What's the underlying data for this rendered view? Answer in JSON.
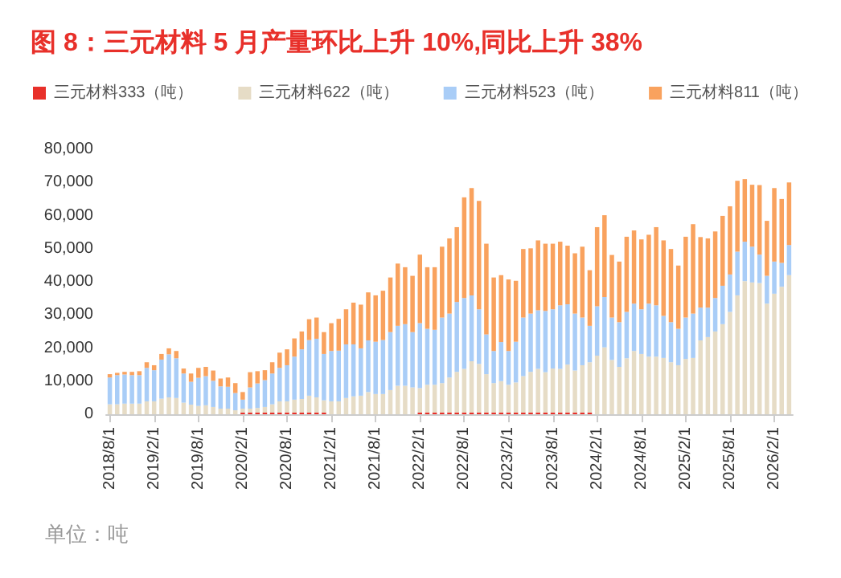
{
  "chart_data": {
    "type": "bar",
    "stacked": true,
    "title": "图 8：三元材料 5 月产量环比上升 10%,同比上升 38%",
    "annotations": [
      "单位：吨"
    ],
    "legend": "top",
    "categories": [
      "2018/8/1",
      null,
      null,
      null,
      null,
      null,
      "2019/2/1",
      null,
      null,
      null,
      null,
      null,
      "2019/8/1",
      null,
      null,
      null,
      null,
      null,
      "2020/2/1",
      null,
      null,
      null,
      null,
      null,
      "2020/8/1",
      null,
      null,
      null,
      null,
      null,
      "2021/2/1",
      null,
      null,
      null,
      null,
      null,
      "2021/8/1",
      null,
      null,
      null,
      null,
      null,
      "2022/2/1",
      null,
      null,
      null,
      null,
      null,
      "2022/8/1",
      null,
      null,
      null,
      null,
      null,
      "2023/2/1",
      null,
      null,
      null,
      null,
      null,
      "2023/8/1",
      null,
      null,
      null,
      null,
      null,
      "2024/2/1",
      null,
      null,
      null,
      null,
      null,
      "2024/8/1",
      null,
      null,
      null,
      null,
      null,
      "2025/2/1",
      null,
      null,
      null,
      null,
      null,
      "2025/8/1",
      null,
      null,
      null,
      null,
      null,
      "2026/2/1",
      null,
      null
    ],
    "ylim": [
      0,
      80000
    ],
    "yticks": [
      {
        "value": 0,
        "label": "0"
      },
      {
        "value": 10000,
        "label": "10,000"
      },
      {
        "value": 20000,
        "label": "20,000"
      },
      {
        "value": 30000,
        "label": "30,000"
      },
      {
        "value": 40000,
        "label": "40,000"
      },
      {
        "value": 50000,
        "label": "50,000"
      },
      {
        "value": 60000,
        "label": "60,000"
      },
      {
        "value": 70000,
        "label": "70,000"
      },
      {
        "value": 80000,
        "label": "80,000"
      }
    ],
    "series": [
      {
        "name": "三元材料333（吨）",
        "color": "#e8302a",
        "values": [
          0,
          0,
          0,
          0,
          0,
          0,
          0,
          0,
          0,
          0,
          0,
          0,
          0,
          0,
          0,
          0,
          0,
          0,
          500,
          500,
          500,
          500,
          500,
          500,
          500,
          500,
          500,
          500,
          500,
          500,
          0,
          0,
          0,
          0,
          0,
          0,
          0,
          0,
          0,
          0,
          0,
          0,
          500,
          500,
          500,
          500,
          500,
          500,
          500,
          500,
          500,
          500,
          500,
          500,
          500,
          500,
          500,
          500,
          500,
          500,
          500,
          500,
          500,
          500,
          500,
          500,
          0,
          0,
          0,
          0,
          0,
          0,
          0,
          0,
          0,
          0,
          0,
          0,
          0,
          0,
          0,
          0,
          0,
          0,
          0,
          0,
          0,
          0,
          0,
          0,
          0,
          0,
          0
        ]
      },
      {
        "name": "三元材料622（吨）",
        "color": "#e6dcc6",
        "values": [
          3000,
          3000,
          3200,
          3200,
          3200,
          3900,
          3900,
          4700,
          5100,
          4900,
          3500,
          2900,
          2500,
          2700,
          2200,
          1700,
          1700,
          1200,
          1200,
          1200,
          1400,
          1700,
          2500,
          3400,
          3400,
          3900,
          4100,
          5100,
          4600,
          3700,
          3900,
          3900,
          4900,
          5400,
          5600,
          6700,
          6100,
          6100,
          7300,
          8600,
          8600,
          8100,
          7400,
          8400,
          8400,
          8900,
          10600,
          12300,
          13200,
          15500,
          14700,
          11600,
          8900,
          9500,
          8400,
          9100,
          11000,
          12300,
          13200,
          12200,
          13300,
          13200,
          14500,
          12700,
          14300,
          15200,
          17700,
          20200,
          16400,
          14300,
          16900,
          19100,
          18200,
          17400,
          17400,
          17000,
          15700,
          14800,
          16700,
          17000,
          22300,
          23300,
          25000,
          27200,
          30900,
          35900,
          40200,
          39800,
          39600,
          33400,
          36400,
          38500,
          42000
        ]
      },
      {
        "name": "三元材料523（吨）",
        "color": "#a9cdf7",
        "values": [
          8100,
          8800,
          8800,
          8600,
          8600,
          10100,
          9400,
          11800,
          13000,
          12000,
          8800,
          6900,
          8500,
          8800,
          7900,
          6700,
          6600,
          5200,
          2700,
          6400,
          7400,
          8100,
          9300,
          10100,
          10900,
          13000,
          15000,
          16800,
          17700,
          14000,
          15200,
          15300,
          16200,
          15700,
          14300,
          15600,
          15800,
          16300,
          17500,
          18100,
          18600,
          16700,
          19600,
          16900,
          16600,
          19800,
          19300,
          21100,
          21400,
          19900,
          16500,
          12000,
          9700,
          11800,
          10200,
          12300,
          17700,
          17600,
          17700,
          18500,
          17900,
          19200,
          18200,
          17200,
          14400,
          11000,
          14900,
          15200,
          12800,
          13500,
          14000,
          14300,
          13500,
          16000,
          15500,
          12700,
          12100,
          11000,
          12500,
          13400,
          9900,
          8900,
          10100,
          11600,
          11300,
          13200,
          11900,
          10800,
          8600,
          8400,
          9700,
          7200,
          9100
        ]
      },
      {
        "name": "三元材料811（吨）",
        "color": "#f9a25e",
        "values": [
          1000,
          700,
          800,
          1000,
          1200,
          1700,
          1500,
          1700,
          1800,
          2200,
          1500,
          2500,
          3000,
          2800,
          3100,
          2400,
          2800,
          3000,
          2300,
          4600,
          3700,
          3000,
          3400,
          4600,
          4800,
          5500,
          5400,
          6300,
          6400,
          6600,
          8400,
          9600,
          10600,
          12600,
          13200,
          14500,
          14000,
          14900,
          16500,
          18800,
          17200,
          17000,
          20700,
          18600,
          18900,
          21400,
          22700,
          22600,
          30400,
          32400,
          32700,
          27400,
          22200,
          20200,
          21600,
          18400,
          20700,
          19700,
          21100,
          20300,
          19800,
          19200,
          17700,
          18200,
          21400,
          16800,
          23900,
          24700,
          18900,
          18300,
          22700,
          22100,
          21100,
          20800,
          23600,
          22800,
          22100,
          19100,
          24400,
          27000,
          21300,
          20900,
          20100,
          21100,
          20600,
          21400,
          18900,
          18700,
          21000,
          16600,
          22200,
          19300,
          18900
        ]
      }
    ]
  }
}
